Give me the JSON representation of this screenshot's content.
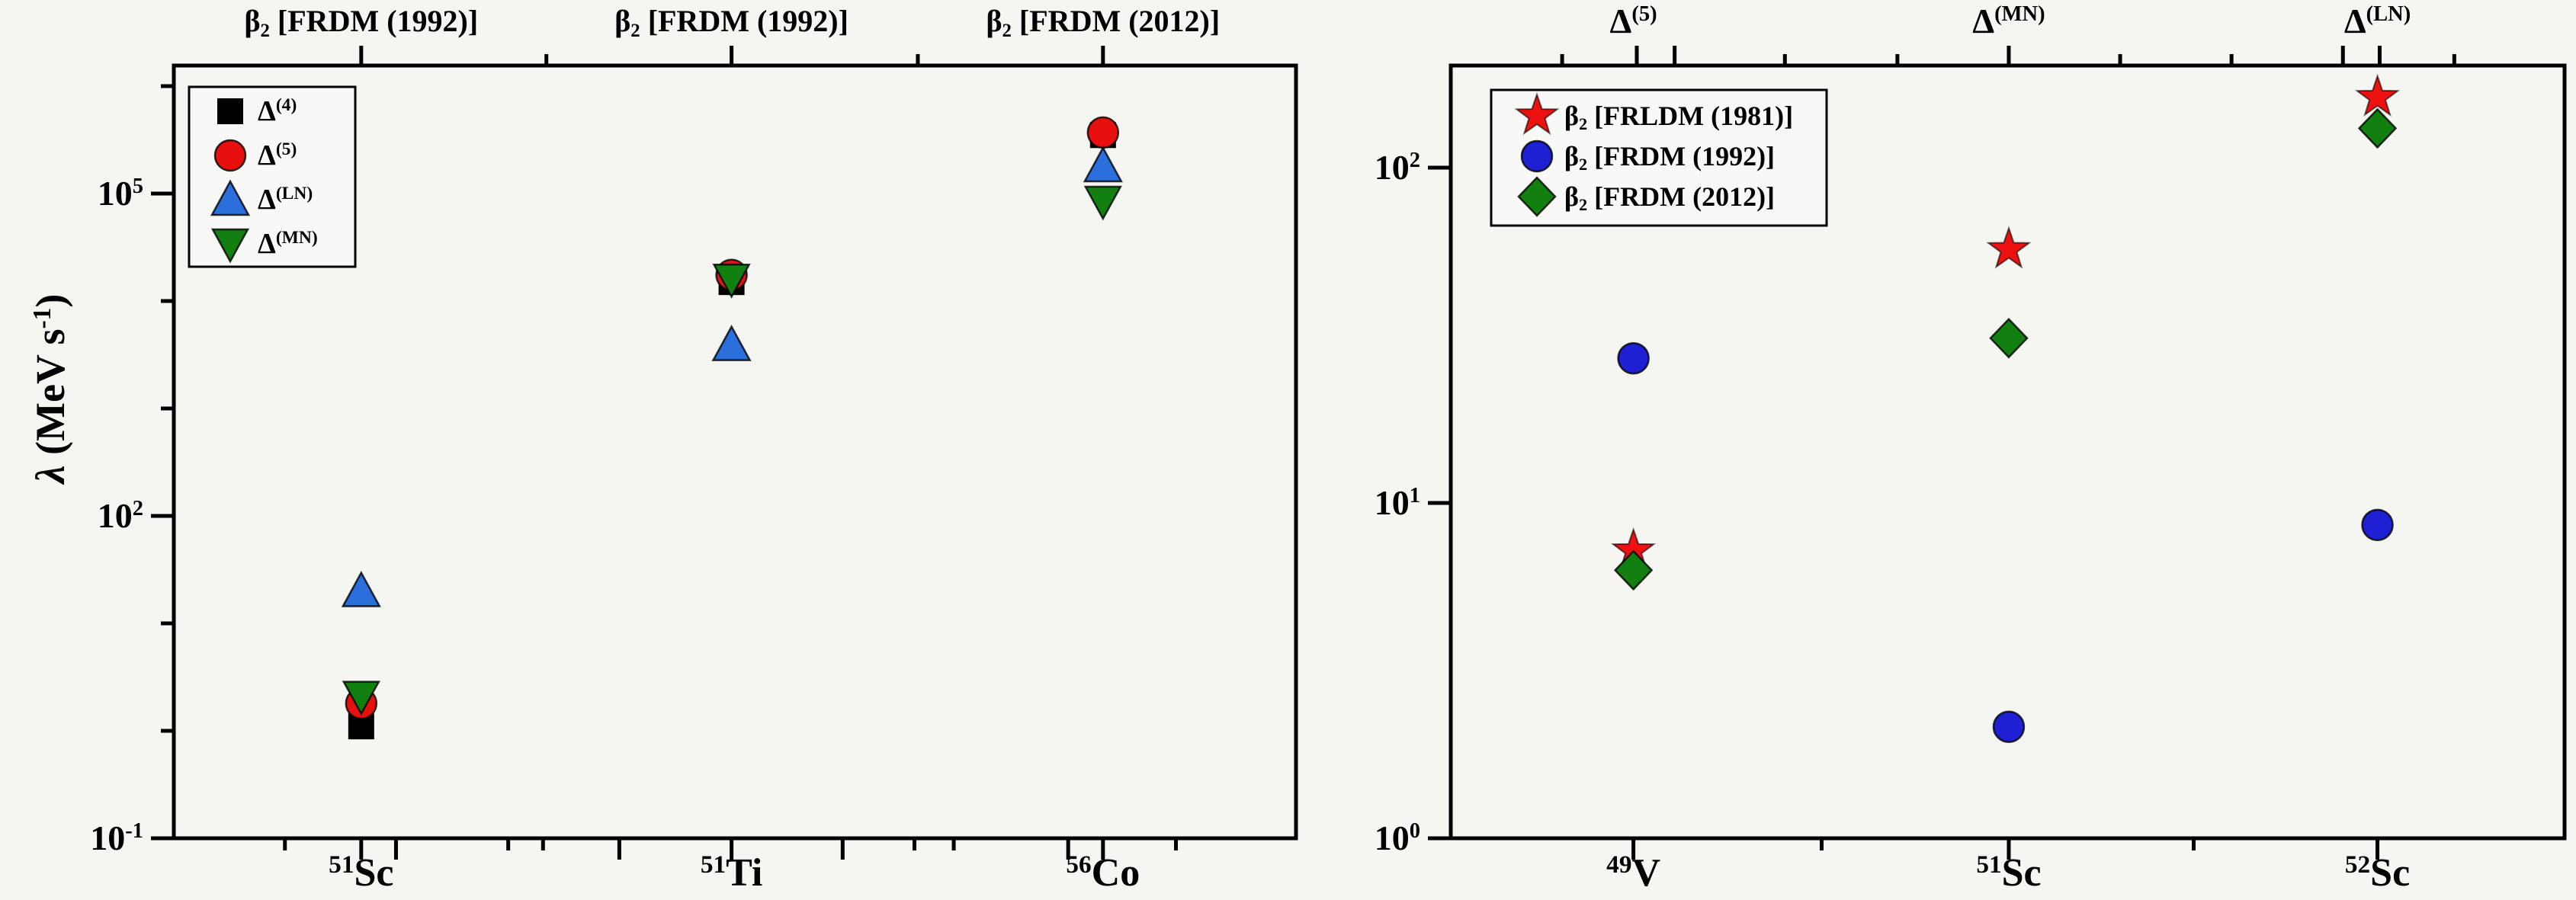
{
  "figure": {
    "background": "#f5f5f2",
    "axis_color": "#000000"
  },
  "chart_data": [
    {
      "type": "scatter",
      "panel": "left",
      "yscale": "log",
      "ylim": [
        0.1,
        1500000
      ],
      "ylabel": "λ (MeV s^-1)",
      "ylabel_parts": {
        "lambda": "λ",
        "pre": " (MeV s",
        "sup": "-1",
        "post": ")"
      },
      "ytick_labels": [
        {
          "base": "10",
          "exp": "-1",
          "exp_val": -1
        },
        {
          "base": "10",
          "exp": "2",
          "exp_val": 2
        },
        {
          "base": "10",
          "exp": "5",
          "exp_val": 5
        }
      ],
      "minor_ytick_exps": [
        0,
        1,
        3,
        4,
        6
      ],
      "categories": [
        {
          "mass": "51",
          "symbol": "Sc"
        },
        {
          "mass": "51",
          "symbol": "Ti"
        },
        {
          "mass": "56",
          "symbol": "Co"
        }
      ],
      "top_axis_labels": [
        {
          "base": "β",
          "sub": "2",
          "rest": " [FRDM (1992)]"
        },
        {
          "base": "β",
          "sub": "2",
          "rest": " [FRDM (1992)]"
        },
        {
          "base": "β",
          "sub": "2",
          "rest": " [FRDM (2012)]"
        }
      ],
      "legend_position": "top-left",
      "series": [
        {
          "id": "delta-4",
          "label": {
            "base": "Δ",
            "sup": "(4)"
          },
          "marker": "square",
          "color": "#000000",
          "values": [
            1.1,
            15000,
            350000
          ]
        },
        {
          "id": "delta-5",
          "label": {
            "base": "Δ",
            "sup": "(5)"
          },
          "marker": "circle",
          "color": "#e8100e",
          "values": [
            1.8,
            17500,
            370000
          ]
        },
        {
          "id": "delta-LN",
          "label": {
            "base": "Δ",
            "sup": "(LN)"
          },
          "marker": "triangle-up",
          "color": "#2a6fdb",
          "values": [
            20,
            3900,
            180000
          ]
        },
        {
          "id": "delta-MN",
          "label": {
            "base": "Δ",
            "sup": "(MN)"
          },
          "marker": "triangle-down",
          "color": "#118011",
          "values": [
            2.1,
            16000,
            85000
          ]
        }
      ]
    },
    {
      "type": "scatter",
      "panel": "right",
      "yscale": "log",
      "ylim": [
        1,
        200
      ],
      "ytick_labels": [
        {
          "base": "10",
          "exp": "0",
          "exp_val": 0
        },
        {
          "base": "10",
          "exp": "1",
          "exp_val": 1
        },
        {
          "base": "10",
          "exp": "2",
          "exp_val": 2
        }
      ],
      "minor_ytick_exps": [],
      "categories": [
        {
          "mass": "49",
          "symbol": "V"
        },
        {
          "mass": "51",
          "symbol": "Sc"
        },
        {
          "mass": "52",
          "symbol": "Sc"
        }
      ],
      "top_axis_labels": [
        {
          "base": "Δ",
          "sup": "(5)"
        },
        {
          "base": "Δ",
          "sup": "(MN)"
        },
        {
          "base": "Δ",
          "sup": "(LN)"
        }
      ],
      "legend_position": "top-left",
      "series": [
        {
          "id": "beta2-frldm-1981",
          "label": {
            "base": "β",
            "sub": "2",
            "rest": " [FRLDM (1981)]"
          },
          "marker": "star",
          "color": "#ee1111",
          "values": [
            7.2,
            57,
            162
          ]
        },
        {
          "id": "beta2-frdm-1992",
          "label": {
            "base": "β",
            "sub": "2",
            "rest": " [FRDM (1992)]"
          },
          "marker": "circle",
          "color": "#1f1fd4",
          "values": [
            27,
            2.15,
            8.6
          ]
        },
        {
          "id": "beta2-frdm-2012",
          "label": {
            "base": "β",
            "sub": "2",
            "rest": " [FRDM (2012)]"
          },
          "marker": "diamond",
          "color": "#118011",
          "values": [
            6.3,
            31,
            131
          ]
        }
      ]
    }
  ]
}
